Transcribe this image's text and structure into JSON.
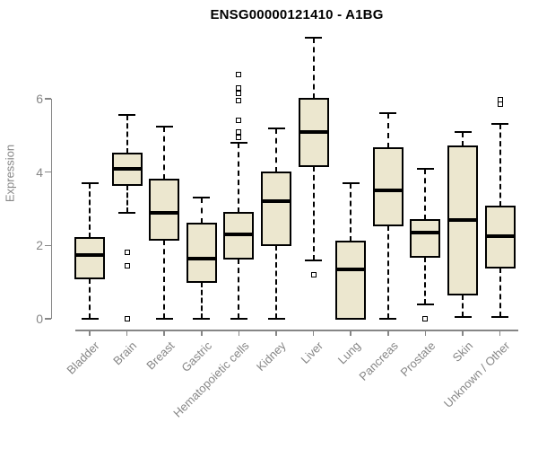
{
  "chart_data": {
    "type": "boxplot",
    "title": "ENSG00000121410 - A1BG",
    "ylabel": "Expression",
    "xlabel": "",
    "ylim": [
      0,
      7.8
    ],
    "yticks": [
      0,
      2,
      4,
      6
    ],
    "grid": false,
    "legend_position": "none",
    "colors": {
      "box_fill": "#ECE7CF",
      "box_line": "#000000",
      "axis_color": "#868686",
      "title_color": "#000000",
      "background": "#FFFFFF"
    },
    "categories": [
      "Bladder",
      "Brain",
      "Breast",
      "Gastric",
      "Hematopoietic cells",
      "Kidney",
      "Liver",
      "Lung",
      "Pancreas",
      "Prostate",
      "Skin",
      "Unknown / Other"
    ],
    "series": [
      {
        "category": "Bladder",
        "whisker_low": 0,
        "q1": 1.1,
        "median": 1.75,
        "q3": 2.2,
        "whisker_high": 3.7,
        "outliers": []
      },
      {
        "category": "Brain",
        "whisker_low": 2.9,
        "q1": 3.65,
        "median": 4.1,
        "q3": 4.5,
        "whisker_high": 5.55,
        "outliers": [
          1.8,
          1.45,
          0
        ]
      },
      {
        "category": "Breast",
        "whisker_low": 0,
        "q1": 2.15,
        "median": 2.9,
        "q3": 3.8,
        "whisker_high": 5.25,
        "outliers": []
      },
      {
        "category": "Gastric",
        "whisker_low": 0,
        "q1": 1.0,
        "median": 1.65,
        "q3": 2.6,
        "whisker_high": 3.3,
        "outliers": []
      },
      {
        "category": "Hematopoietic cells",
        "whisker_low": 0,
        "q1": 1.65,
        "median": 2.3,
        "q3": 2.9,
        "whisker_high": 4.8,
        "outliers": [
          6.65,
          6.3,
          6.15,
          5.95,
          5.4,
          5.1,
          4.95
        ]
      },
      {
        "category": "Kidney",
        "whisker_low": 0,
        "q1": 2.0,
        "median": 3.2,
        "q3": 4.0,
        "whisker_high": 5.2,
        "outliers": []
      },
      {
        "category": "Liver",
        "whisker_low": 1.6,
        "q1": 4.15,
        "median": 5.1,
        "q3": 6.0,
        "whisker_high": 7.65,
        "outliers": [
          1.2
        ]
      },
      {
        "category": "Lung",
        "whisker_low": 0,
        "q1": 0,
        "median": 1.35,
        "q3": 2.1,
        "whisker_high": 3.7,
        "outliers": []
      },
      {
        "category": "Pancreas",
        "whisker_low": 0,
        "q1": 2.55,
        "median": 3.5,
        "q3": 4.65,
        "whisker_high": 5.6,
        "outliers": []
      },
      {
        "category": "Prostate",
        "whisker_low": 0.4,
        "q1": 1.7,
        "median": 2.35,
        "q3": 2.7,
        "whisker_high": 4.1,
        "outliers": [
          0
        ]
      },
      {
        "category": "Skin",
        "whisker_low": 0.05,
        "q1": 0.65,
        "median": 2.7,
        "q3": 4.7,
        "whisker_high": 5.1,
        "outliers": []
      },
      {
        "category": "Unknown / Other",
        "whisker_low": 0.05,
        "q1": 1.4,
        "median": 2.25,
        "q3": 3.05,
        "whisker_high": 5.3,
        "outliers": [
          5.98,
          5.85
        ]
      }
    ]
  }
}
